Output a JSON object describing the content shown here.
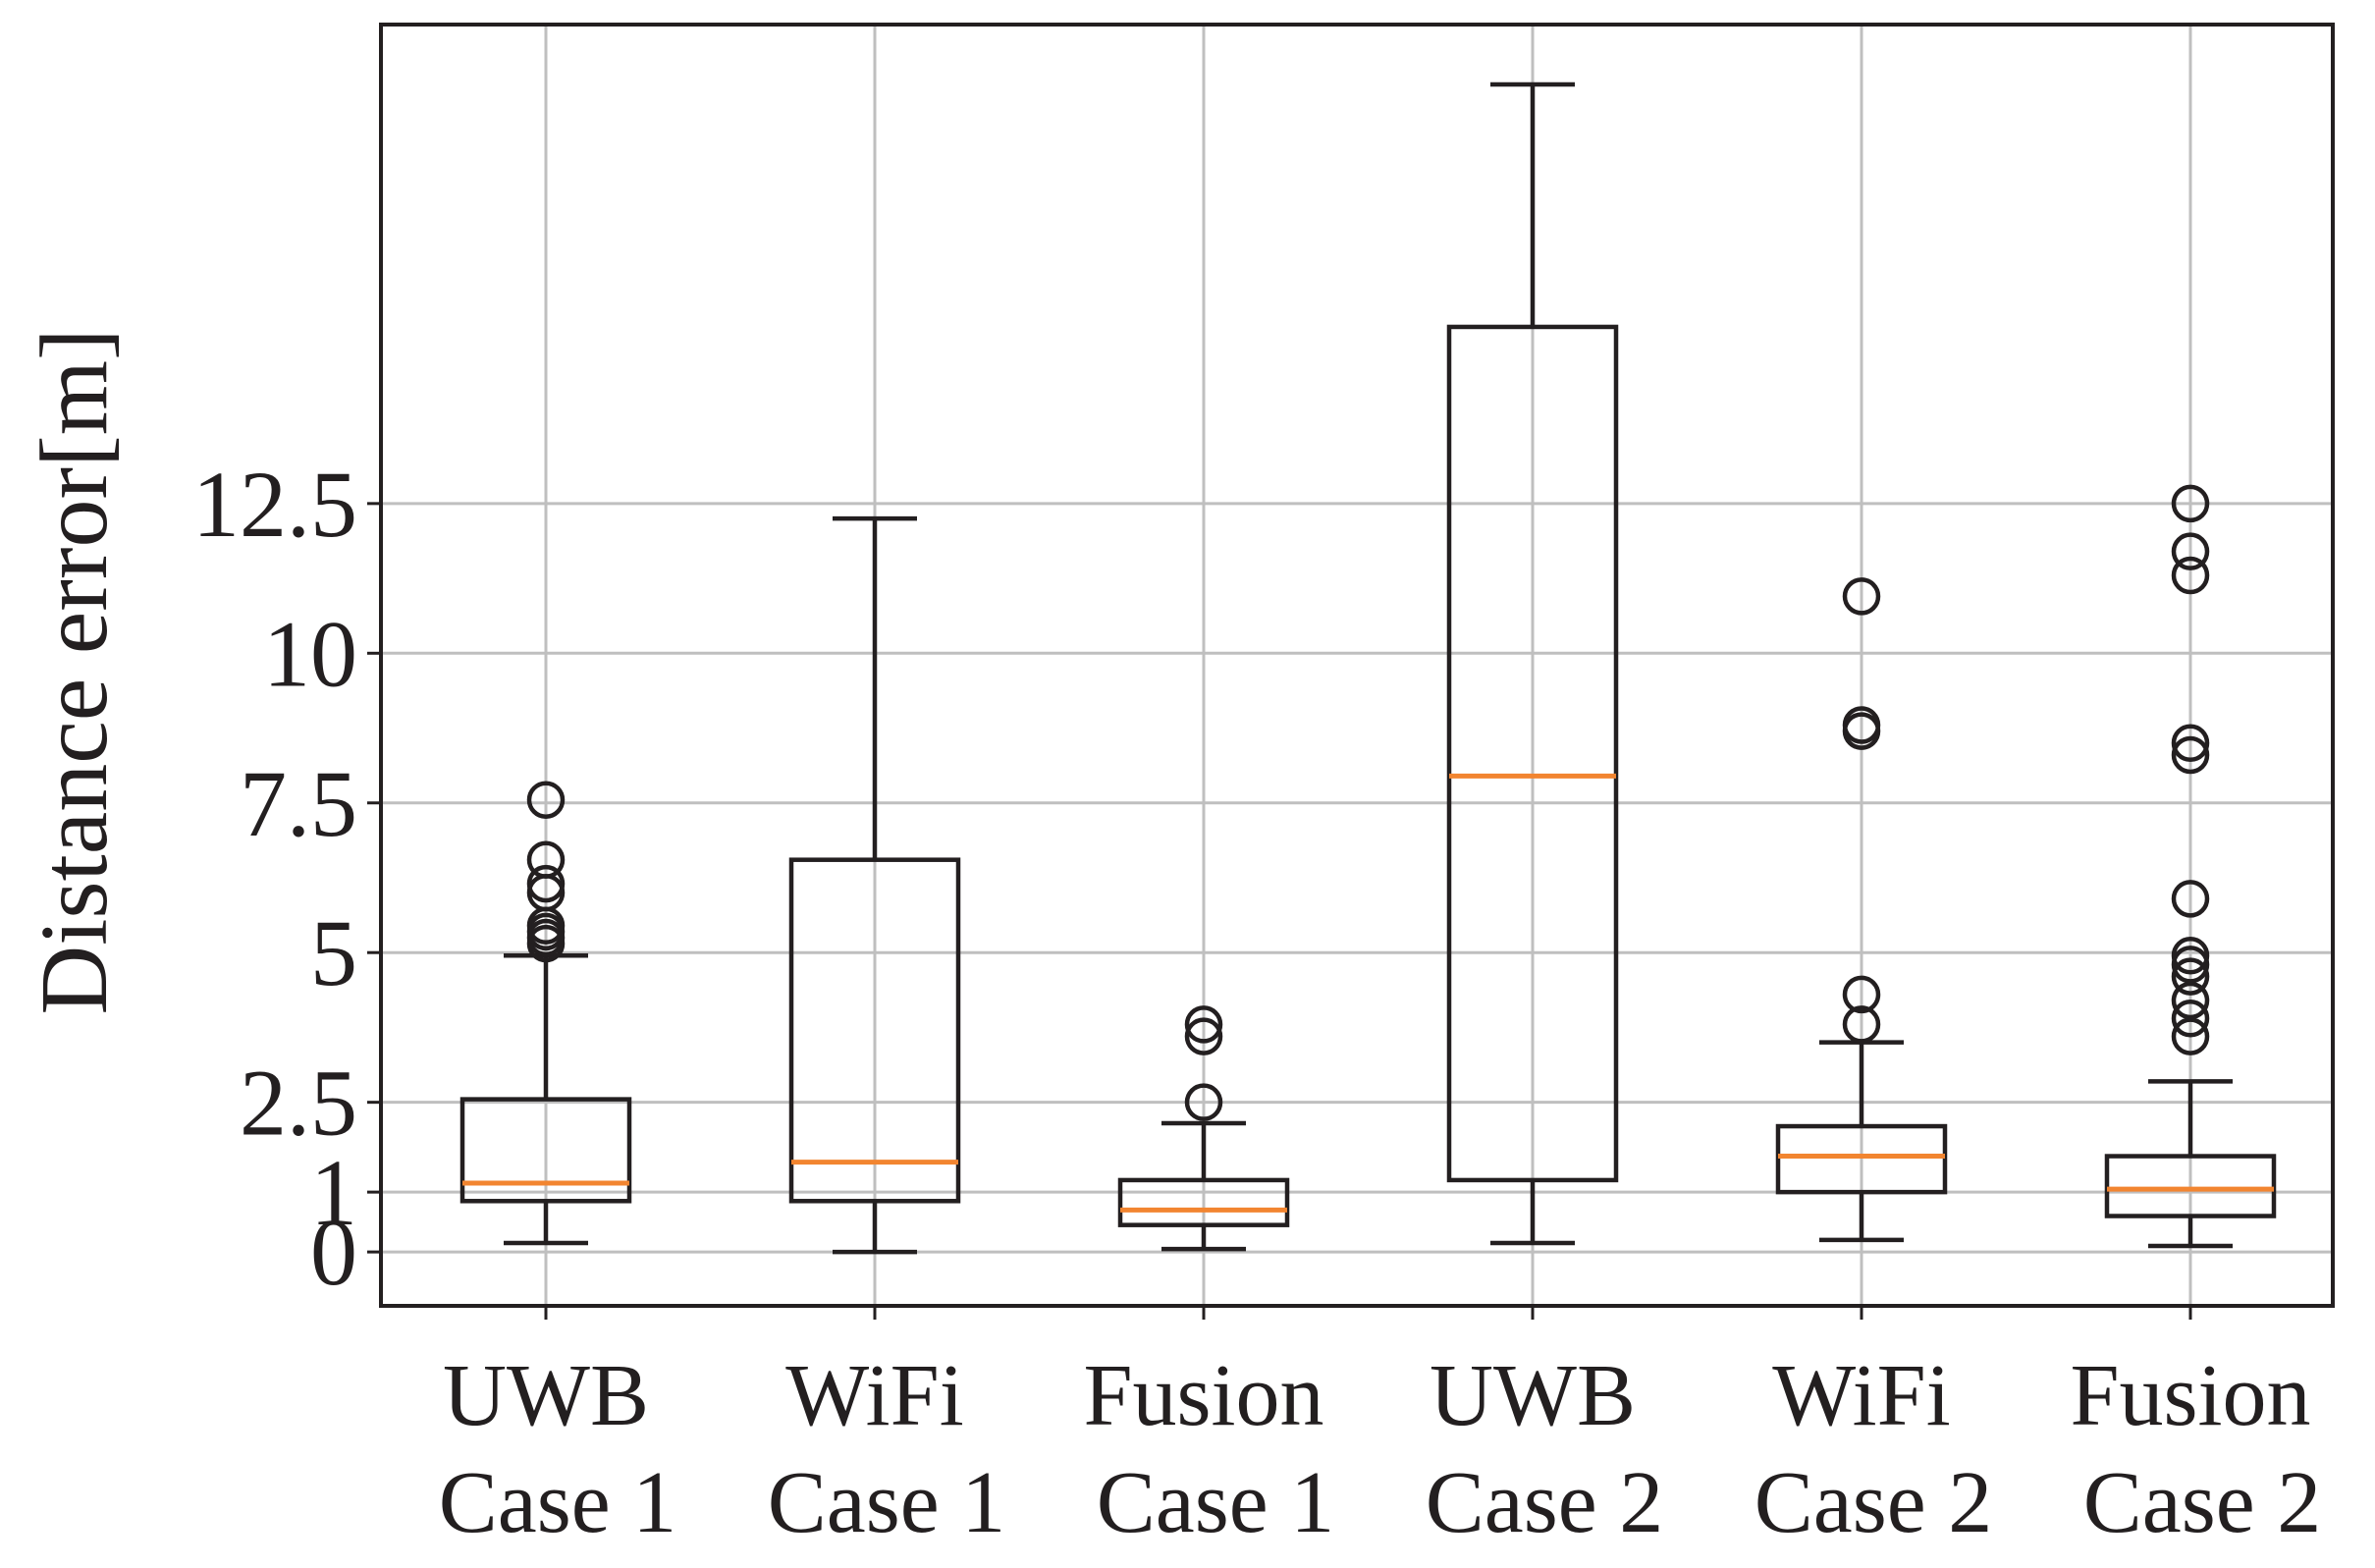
{
  "chart_data": {
    "type": "box",
    "title": "",
    "xlabel": "",
    "ylabel": "Distance error[m]",
    "ylim": [
      -0.9,
      20.5
    ],
    "yticks": [
      {
        "value": 0,
        "label": "0"
      },
      {
        "value": 1,
        "label": "1"
      },
      {
        "value": 2.5,
        "label": "2.5"
      },
      {
        "value": 5,
        "label": "5"
      },
      {
        "value": 7.5,
        "label": "7.5"
      },
      {
        "value": 10,
        "label": "10"
      },
      {
        "value": 12.5,
        "label": "12.5"
      }
    ],
    "grid": true,
    "colors": {
      "box": "#231f20",
      "median": "#f28530",
      "grid": "#bfbfbf"
    },
    "boxes": [
      {
        "name": "uwb-case1",
        "label_line1": "UWB",
        "label_line2": "Case 1",
        "whisker_low": 0.15,
        "q1": 0.85,
        "median": 1.15,
        "q3": 2.55,
        "whisker_high": 4.95,
        "outliers": [
          5.15,
          5.25,
          5.35,
          5.45,
          6.0,
          6.15,
          6.55,
          7.55
        ]
      },
      {
        "name": "wifi-case1",
        "label_line1": "WiFi",
        "label_line2": "Case 1",
        "whisker_low": 0.0,
        "q1": 0.85,
        "median": 1.5,
        "q3": 6.55,
        "whisker_high": 12.25,
        "outliers": []
      },
      {
        "name": "fusion-case1",
        "label_line1": "Fusion",
        "label_line2": "Case 1",
        "whisker_low": 0.05,
        "q1": 0.45,
        "median": 0.7,
        "q3": 1.2,
        "whisker_high": 2.15,
        "outliers": [
          2.5,
          3.6,
          3.8
        ]
      },
      {
        "name": "uwb-case2",
        "label_line1": "UWB",
        "label_line2": "Case 2",
        "whisker_low": 0.15,
        "q1": 1.2,
        "median": 7.95,
        "q3": 15.45,
        "whisker_high": 19.5,
        "outliers": []
      },
      {
        "name": "wifi-case2",
        "label_line1": "WiFi",
        "label_line2": "Case 2",
        "whisker_low": 0.2,
        "q1": 1.0,
        "median": 1.6,
        "q3": 2.1,
        "whisker_high": 3.5,
        "outliers": [
          3.8,
          4.3,
          8.7,
          8.8,
          10.95
        ]
      },
      {
        "name": "fusion-case2",
        "label_line1": "Fusion",
        "label_line2": "Case 2",
        "whisker_low": 0.1,
        "q1": 0.6,
        "median": 1.05,
        "q3": 1.6,
        "whisker_high": 2.85,
        "outliers": [
          3.6,
          3.9,
          4.2,
          4.6,
          4.8,
          4.95,
          5.9,
          8.3,
          8.5,
          11.3,
          11.7,
          12.5
        ]
      }
    ]
  }
}
